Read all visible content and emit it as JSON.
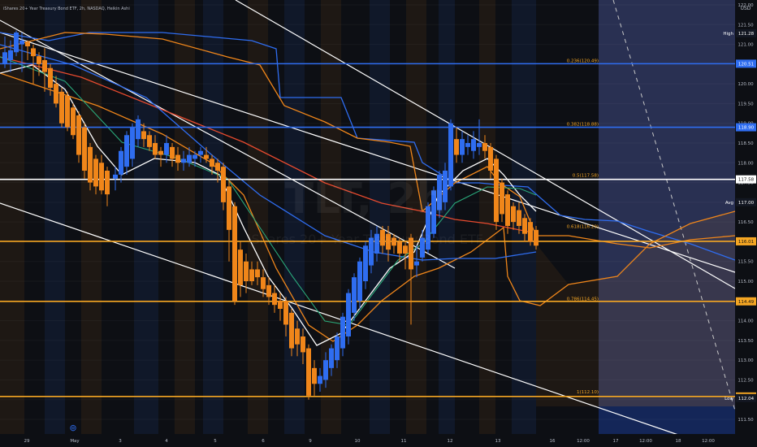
{
  "header": {
    "title": "iShares 20+ Year Treasury Bond ETF, 2h, NASDAQ, Heikin Ashi"
  },
  "watermark": {
    "symbol": "TLT, 2h",
    "name": "iShares 20+ Year Treasury Bond ETF"
  },
  "axis": {
    "currency": "USD",
    "event_icon": "⊚"
  },
  "colors": {
    "up": "#2f6df0",
    "down": "#f0861a",
    "bg": "#0d0f14"
  },
  "chart_data": {
    "type": "candlestick",
    "y_axis": {
      "ticks": [
        122.0,
        121.5,
        121.0,
        120.5,
        120.0,
        119.5,
        119.0,
        118.5,
        118.0,
        117.5,
        117.0,
        116.5,
        116.0,
        115.5,
        115.0,
        114.5,
        114.0,
        113.5,
        113.0,
        112.5,
        112.0,
        111.5
      ],
      "ylim": [
        111.4,
        122.3
      ]
    },
    "x_axis": {
      "labels": [
        "29",
        "May",
        "3",
        "4",
        "5",
        "6",
        "9",
        "10",
        "11",
        "12",
        "13",
        "16",
        "12:00",
        "17",
        "12:00",
        "18",
        "12:00"
      ]
    },
    "price_labels": [
      {
        "text": "High",
        "value": "121.28"
      },
      {
        "text": "",
        "value": "120.51"
      },
      {
        "text": "",
        "value": "118.90"
      },
      {
        "text": "",
        "value": "117.58"
      },
      {
        "text": "Avg",
        "value": "117.00"
      },
      {
        "text": "",
        "value": "116.01"
      },
      {
        "text": "",
        "value": "114.49"
      },
      {
        "text": "",
        "value": "112.08"
      },
      {
        "text": "Low",
        "value": "112.04"
      }
    ],
    "fib_labels": [
      {
        "text": "0.236(120.49)",
        "value": 120.49
      },
      {
        "text": "0.382(118.88)",
        "value": 118.88
      },
      {
        "text": "0.5(117.58)",
        "value": 117.58
      },
      {
        "text": "0.618(116.29)",
        "value": 116.29
      },
      {
        "text": "0.786(114.45)",
        "value": 114.45
      },
      {
        "text": "1(112.10)",
        "value": 112.1
      }
    ],
    "hlines": [
      {
        "value": 120.51,
        "color": "#2f6df0",
        "width": 1.6
      },
      {
        "value": 118.9,
        "color": "#2f6df0",
        "width": 1.6
      },
      {
        "value": 117.58,
        "color": "#ffffff",
        "width": 1.6
      },
      {
        "value": 116.01,
        "color": "#f5a623",
        "width": 1.6
      },
      {
        "value": 114.49,
        "color": "#f5a623",
        "width": 1.6
      },
      {
        "value": 112.08,
        "color": "#f5a623",
        "width": 1.6
      }
    ],
    "candles": [
      {
        "x": 6,
        "o": 120.5,
        "c": 120.8,
        "h": 121.2,
        "l": 120.4
      },
      {
        "x": 13,
        "o": 120.6,
        "c": 120.85,
        "h": 121.1,
        "l": 120.3
      },
      {
        "x": 20,
        "o": 120.8,
        "c": 121.3,
        "h": 121.35,
        "l": 120.7
      },
      {
        "x": 27,
        "o": 121.0,
        "c": 121.1,
        "h": 121.3,
        "l": 120.3
      },
      {
        "x": 34,
        "o": 121.05,
        "c": 120.95,
        "h": 121.1,
        "l": 120.6
      },
      {
        "x": 41,
        "o": 120.9,
        "c": 120.7,
        "h": 121.0,
        "l": 120.0
      },
      {
        "x": 48,
        "o": 120.7,
        "c": 120.5,
        "h": 120.8,
        "l": 120.2
      },
      {
        "x": 55,
        "o": 120.6,
        "c": 120.3,
        "h": 120.9,
        "l": 119.8
      },
      {
        "x": 62,
        "o": 120.4,
        "c": 119.9,
        "h": 120.5,
        "l": 119.7
      },
      {
        "x": 69,
        "o": 120.0,
        "c": 119.5,
        "h": 120.2,
        "l": 119.4
      },
      {
        "x": 76,
        "o": 119.8,
        "c": 119.0,
        "h": 119.9,
        "l": 118.9
      },
      {
        "x": 83,
        "o": 119.7,
        "c": 118.9,
        "h": 119.8,
        "l": 118.8
      },
      {
        "x": 90,
        "o": 119.4,
        "c": 118.7,
        "h": 119.5,
        "l": 118.6
      },
      {
        "x": 97,
        "o": 119.2,
        "c": 118.2,
        "h": 119.3,
        "l": 118.0
      },
      {
        "x": 104,
        "o": 118.9,
        "c": 117.8,
        "h": 119.0,
        "l": 117.6
      },
      {
        "x": 111,
        "o": 118.4,
        "c": 117.5,
        "h": 118.5,
        "l": 117.3
      },
      {
        "x": 118,
        "o": 118.1,
        "c": 117.4,
        "h": 118.2,
        "l": 117.2
      },
      {
        "x": 125,
        "o": 118.0,
        "c": 117.3,
        "h": 118.2,
        "l": 117.2
      },
      {
        "x": 132,
        "o": 117.8,
        "c": 117.2,
        "h": 117.9,
        "l": 116.9
      },
      {
        "x": 142,
        "o": 117.6,
        "c": 117.7,
        "h": 117.9,
        "l": 117.3
      },
      {
        "x": 149,
        "o": 117.7,
        "c": 118.3,
        "h": 118.4,
        "l": 117.5
      },
      {
        "x": 156,
        "o": 117.9,
        "c": 118.7,
        "h": 118.8,
        "l": 117.7
      },
      {
        "x": 163,
        "o": 118.1,
        "c": 118.9,
        "h": 119.0,
        "l": 117.9
      },
      {
        "x": 170,
        "o": 118.6,
        "c": 119.1,
        "h": 119.2,
        "l": 118.4
      },
      {
        "x": 177,
        "o": 118.8,
        "c": 118.6,
        "h": 119.0,
        "l": 118.4
      },
      {
        "x": 184,
        "o": 118.7,
        "c": 118.4,
        "h": 118.8,
        "l": 118.3
      },
      {
        "x": 191,
        "o": 118.5,
        "c": 118.2,
        "h": 118.7,
        "l": 118.1
      },
      {
        "x": 198,
        "o": 118.3,
        "c": 118.2,
        "h": 118.4,
        "l": 117.9
      },
      {
        "x": 205,
        "o": 118.2,
        "c": 118.5,
        "h": 118.7,
        "l": 118.0
      },
      {
        "x": 212,
        "o": 118.4,
        "c": 118.1,
        "h": 118.5,
        "l": 117.9
      },
      {
        "x": 219,
        "o": 118.2,
        "c": 118.0,
        "h": 118.4,
        "l": 117.8
      },
      {
        "x": 226,
        "o": 118.0,
        "c": 118.1,
        "h": 118.3,
        "l": 117.8
      },
      {
        "x": 233,
        "o": 118.0,
        "c": 118.2,
        "h": 118.4,
        "l": 117.9
      },
      {
        "x": 240,
        "o": 118.1,
        "c": 118.2,
        "h": 118.3,
        "l": 117.9
      },
      {
        "x": 247,
        "o": 118.2,
        "c": 118.3,
        "h": 118.4,
        "l": 118.0
      },
      {
        "x": 254,
        "o": 118.2,
        "c": 118.1,
        "h": 118.4,
        "l": 118.0
      },
      {
        "x": 261,
        "o": 118.1,
        "c": 117.9,
        "h": 118.2,
        "l": 117.7
      },
      {
        "x": 268,
        "o": 118.0,
        "c": 117.8,
        "h": 118.1,
        "l": 117.5
      },
      {
        "x": 275,
        "o": 117.9,
        "c": 117.0,
        "h": 118.0,
        "l": 116.8
      },
      {
        "x": 282,
        "o": 117.4,
        "c": 116.3,
        "h": 117.6,
        "l": 115.5
      },
      {
        "x": 289,
        "o": 116.9,
        "c": 114.5,
        "h": 117.0,
        "l": 114.4
      },
      {
        "x": 296,
        "o": 115.8,
        "c": 114.9,
        "h": 116.0,
        "l": 114.6
      },
      {
        "x": 303,
        "o": 115.5,
        "c": 115.0,
        "h": 115.7,
        "l": 114.7
      },
      {
        "x": 310,
        "o": 115.3,
        "c": 115.0,
        "h": 115.5,
        "l": 114.9
      },
      {
        "x": 317,
        "o": 115.3,
        "c": 115.1,
        "h": 115.5,
        "l": 114.9
      },
      {
        "x": 324,
        "o": 115.1,
        "c": 114.8,
        "h": 115.3,
        "l": 114.6
      },
      {
        "x": 331,
        "o": 114.9,
        "c": 114.6,
        "h": 115.1,
        "l": 114.4
      },
      {
        "x": 338,
        "o": 114.7,
        "c": 114.4,
        "h": 114.9,
        "l": 114.2
      },
      {
        "x": 345,
        "o": 114.5,
        "c": 114.3,
        "h": 114.7,
        "l": 114.0
      },
      {
        "x": 352,
        "o": 114.5,
        "c": 113.9,
        "h": 114.6,
        "l": 113.6
      },
      {
        "x": 359,
        "o": 114.2,
        "c": 113.3,
        "h": 114.3,
        "l": 113.1
      },
      {
        "x": 366,
        "o": 113.8,
        "c": 113.4,
        "h": 114.0,
        "l": 113.1
      },
      {
        "x": 373,
        "o": 113.6,
        "c": 113.2,
        "h": 113.8,
        "l": 112.9
      },
      {
        "x": 380,
        "o": 113.3,
        "c": 112.1,
        "h": 113.4,
        "l": 112.0
      },
      {
        "x": 387,
        "o": 112.8,
        "c": 112.4,
        "h": 113.0,
        "l": 112.1
      },
      {
        "x": 394,
        "o": 112.4,
        "c": 112.6,
        "h": 112.8,
        "l": 112.2
      },
      {
        "x": 401,
        "o": 112.5,
        "c": 113.0,
        "h": 113.2,
        "l": 112.3
      },
      {
        "x": 408,
        "o": 112.8,
        "c": 113.3,
        "h": 113.4,
        "l": 112.6
      },
      {
        "x": 415,
        "o": 113.0,
        "c": 113.6,
        "h": 113.7,
        "l": 112.8
      },
      {
        "x": 422,
        "o": 113.3,
        "c": 114.1,
        "h": 114.2,
        "l": 113.1
      },
      {
        "x": 429,
        "o": 113.6,
        "c": 114.7,
        "h": 114.8,
        "l": 113.4
      },
      {
        "x": 436,
        "o": 114.2,
        "c": 115.1,
        "h": 115.2,
        "l": 114.0
      },
      {
        "x": 443,
        "o": 114.5,
        "c": 115.5,
        "h": 115.6,
        "l": 114.3
      },
      {
        "x": 450,
        "o": 115.0,
        "c": 115.9,
        "h": 116.0,
        "l": 114.8
      },
      {
        "x": 457,
        "o": 115.4,
        "c": 116.1,
        "h": 116.3,
        "l": 115.2
      },
      {
        "x": 464,
        "o": 115.7,
        "c": 116.2,
        "h": 116.4,
        "l": 115.5
      },
      {
        "x": 471,
        "o": 116.3,
        "c": 115.9,
        "h": 116.4,
        "l": 115.7
      },
      {
        "x": 478,
        "o": 116.2,
        "c": 115.8,
        "h": 116.4,
        "l": 115.5
      },
      {
        "x": 485,
        "o": 116.1,
        "c": 115.9,
        "h": 116.2,
        "l": 115.7
      },
      {
        "x": 492,
        "o": 116.0,
        "c": 115.7,
        "h": 116.1,
        "l": 115.5
      },
      {
        "x": 499,
        "o": 115.9,
        "c": 115.7,
        "h": 116.0,
        "l": 115.3
      },
      {
        "x": 506,
        "o": 116.1,
        "c": 115.3,
        "h": 116.2,
        "l": 113.9
      },
      {
        "x": 513,
        "o": 115.4,
        "c": 115.5,
        "h": 115.9,
        "l": 115.1
      },
      {
        "x": 520,
        "o": 115.6,
        "c": 116.1,
        "h": 116.3,
        "l": 115.5
      },
      {
        "x": 527,
        "o": 115.8,
        "c": 116.9,
        "h": 117.0,
        "l": 115.7
      },
      {
        "x": 534,
        "o": 116.2,
        "c": 117.3,
        "h": 117.4,
        "l": 116.1
      },
      {
        "x": 541,
        "o": 116.8,
        "c": 117.7,
        "h": 117.8,
        "l": 116.6
      },
      {
        "x": 548,
        "o": 117.0,
        "c": 117.8,
        "h": 118.0,
        "l": 116.8
      },
      {
        "x": 555,
        "o": 117.4,
        "c": 119.0,
        "h": 119.1,
        "l": 117.3
      },
      {
        "x": 562,
        "o": 118.6,
        "c": 118.2,
        "h": 118.9,
        "l": 118.0
      },
      {
        "x": 569,
        "o": 118.2,
        "c": 118.6,
        "h": 118.8,
        "l": 118.0
      },
      {
        "x": 576,
        "o": 118.4,
        "c": 118.5,
        "h": 118.7,
        "l": 118.2
      },
      {
        "x": 583,
        "o": 118.3,
        "c": 118.6,
        "h": 118.8,
        "l": 118.1
      },
      {
        "x": 590,
        "o": 118.4,
        "c": 118.5,
        "h": 119.1,
        "l": 118.2
      },
      {
        "x": 597,
        "o": 118.5,
        "c": 118.3,
        "h": 118.7,
        "l": 118.1
      },
      {
        "x": 604,
        "o": 118.4,
        "c": 117.8,
        "h": 118.5,
        "l": 117.6
      },
      {
        "x": 611,
        "o": 118.1,
        "c": 116.5,
        "h": 118.2,
        "l": 116.3
      },
      {
        "x": 618,
        "o": 117.5,
        "c": 116.7,
        "h": 117.6,
        "l": 116.5
      },
      {
        "x": 625,
        "o": 117.2,
        "c": 116.4,
        "h": 117.3,
        "l": 116.2
      },
      {
        "x": 632,
        "o": 116.9,
        "c": 116.5,
        "h": 117.0,
        "l": 116.3
      },
      {
        "x": 639,
        "o": 116.8,
        "c": 116.4,
        "h": 117.0,
        "l": 116.2
      },
      {
        "x": 646,
        "o": 116.6,
        "c": 116.2,
        "h": 116.7,
        "l": 116.0
      },
      {
        "x": 653,
        "o": 116.5,
        "c": 116.0,
        "h": 116.6,
        "l": 115.9
      },
      {
        "x": 660,
        "o": 116.3,
        "c": 115.9,
        "h": 116.4,
        "l": 115.8
      }
    ]
  }
}
